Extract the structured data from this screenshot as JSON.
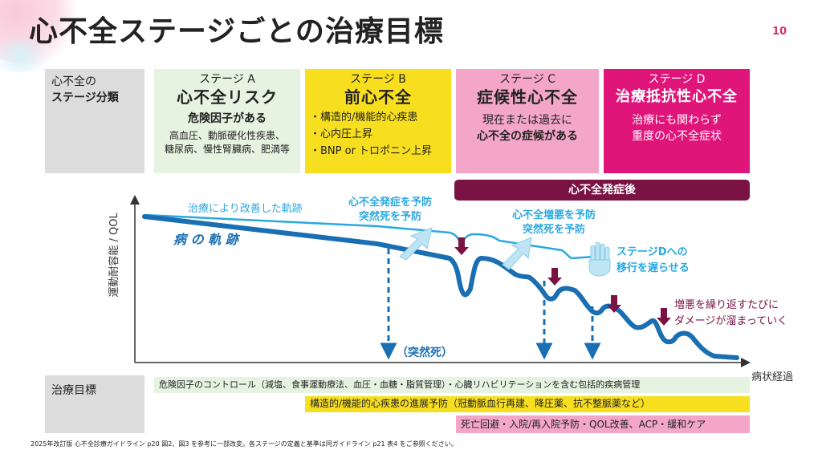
{
  "title": "心不全ステージごとの治療目標",
  "page_number": "10",
  "classification_label": {
    "line1": "心不全の",
    "line2": "ステージ分類"
  },
  "stages": [
    {
      "name": "ステージ A",
      "title": "心不全リスク",
      "sub": "危険因子がある",
      "desc1": "高血圧、動脈硬化性疾患、",
      "desc2": "糖尿病、慢性腎臓病、肥満等",
      "color": "#e6f3e0"
    },
    {
      "name": "ステージ B",
      "title": "前心不全",
      "bullets": [
        "・構造的/機能的心疾患",
        "・心内圧上昇",
        "・BNP or トロポニン上昇"
      ],
      "color": "#f7de1e"
    },
    {
      "name": "ステージ C",
      "title": "症候性心不全",
      "sub1": "現在または過去に",
      "sub2": "心不全の症候がある",
      "color": "#f4a6c8"
    },
    {
      "name": "ステージ D",
      "title": "治療抵抗性心不全",
      "sub1": "治療にも関わらず",
      "sub2": "重度の心不全症状",
      "color": "#e0157a"
    }
  ],
  "post_onset_label": "心不全発症後",
  "graph": {
    "y_axis_label": "運動耐容能 / QOL",
    "x_axis_label": "病状経過",
    "improved_trajectory_label": "治療により改善した軌跡",
    "disease_trajectory_label": "病 の 軌 跡",
    "prevent_onset": [
      "心不全発症を予防",
      "突然死を予防"
    ],
    "prevent_worsening": [
      "心不全増悪を予防",
      "突然死を予防"
    ],
    "delay_stage_d": [
      "ステージDへの",
      "移行を遅らせる"
    ],
    "damage_note": [
      "増悪を繰り返すたびに",
      "ダメージが溜まっていく"
    ],
    "sudden_death_label": "（突然死）"
  },
  "goals_label": "治療目標",
  "goals": [
    {
      "text": "危険因子のコントロール（減塩、食事運動療法、血圧・血糖・脂質管理）・心臓リハビリテーションを含む包括的疾病管理",
      "color": "#e6f3e0"
    },
    {
      "text": "構造的/機能的心疾患の進展予防（冠動脈血行再建、降圧薬、抗不整脈薬など）",
      "color": "#f7de1e"
    },
    {
      "text": "死亡回避・入院/再入院予防・QOL改善、ACP・緩和ケア",
      "color": "#f4a6c8"
    }
  ],
  "footnote": "2025年改訂版 心不全診療ガイドライン p20 図2、図3 を参考に一部改変。各ステージの定義と基準は同ガイドライン p21 表4 をご参照ください。",
  "colors": {
    "improved": "#29a8e0",
    "disease": "#1a6fb3",
    "arrow_marker": "#7a1244",
    "post_onset_bar": "#7a1244",
    "accent": "#d6316f"
  }
}
